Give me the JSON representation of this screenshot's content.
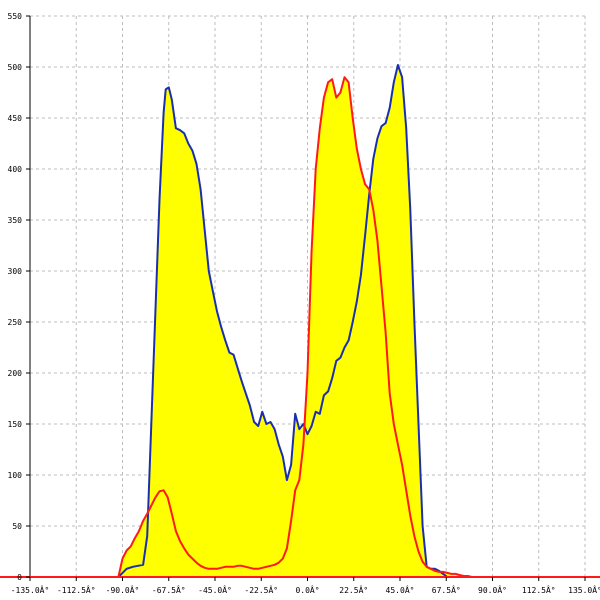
{
  "chart_data": {
    "type": "area",
    "title": "",
    "xlabel": "",
    "ylabel": "",
    "xlim": [
      -135,
      135
    ],
    "ylim": [
      0,
      550
    ],
    "grid": true,
    "x_ticks": [
      -135,
      -112.5,
      -90,
      -67.5,
      -45,
      -22.5,
      0,
      22.5,
      45,
      67.5,
      90,
      112.5,
      135
    ],
    "x_tick_labels": [
      "-135.0Â°",
      "-112.5Â°",
      "-90.0Â°",
      "-67.5Â°",
      "-45.0Â°",
      "-22.5Â°",
      "0.0Â°",
      "22.5Â°",
      "45.0Â°",
      "67.5Â°",
      "90.0Â°",
      "112.5Â°",
      "135.0Â°"
    ],
    "y_ticks": [
      0,
      50,
      100,
      150,
      200,
      250,
      300,
      350,
      400,
      450,
      500,
      550
    ],
    "y_tick_labels": [
      "0",
      "50",
      "100",
      "150",
      "200",
      "250",
      "300",
      "350",
      "400",
      "450",
      "500",
      "550"
    ],
    "fill_color": "#ffff00",
    "series": [
      {
        "color": "#1a2fb0",
        "x": [
          -135,
          -92,
          -90,
          -88,
          -85,
          -80,
          -78,
          -76,
          -74,
          -72,
          -70,
          -69,
          -67.5,
          -66,
          -64,
          -62,
          -60,
          -58,
          -56,
          -54,
          -52,
          -50,
          -48,
          -46,
          -44,
          -42,
          -40,
          -38,
          -36,
          -34,
          -32,
          -30,
          -28,
          -26,
          -24,
          -22,
          -20,
          -18,
          -16,
          -14,
          -12,
          -10,
          -8,
          -6,
          -4,
          -2,
          0,
          2,
          4,
          6,
          8,
          10,
          12,
          14,
          16,
          18,
          20,
          22,
          24,
          26,
          28,
          30,
          32,
          34,
          36,
          38,
          40,
          42,
          44,
          46,
          48,
          50,
          52,
          54,
          56,
          58,
          60,
          62,
          64,
          66,
          68,
          69,
          70,
          72,
          74,
          76,
          78,
          80,
          82,
          84,
          86,
          88,
          90,
          92,
          135
        ],
        "y": [
          0,
          0,
          4,
          8,
          10,
          12,
          40,
          150,
          260,
          370,
          455,
          478,
          480,
          468,
          440,
          438,
          435,
          425,
          418,
          405,
          380,
          340,
          300,
          280,
          260,
          245,
          232,
          220,
          218,
          205,
          192,
          180,
          168,
          152,
          148,
          162,
          150,
          152,
          145,
          130,
          118,
          95,
          110,
          160,
          145,
          150,
          140,
          148,
          162,
          160,
          178,
          182,
          195,
          212,
          215,
          225,
          232,
          250,
          270,
          296,
          335,
          375,
          410,
          430,
          442,
          445,
          460,
          485,
          502,
          490,
          440,
          360,
          250,
          150,
          50,
          10,
          8,
          8,
          6,
          3,
          0,
          0,
          0,
          0,
          0,
          0,
          0,
          0,
          0,
          0,
          0,
          0,
          0,
          0,
          0
        ]
      },
      {
        "color": "#ff1a1a",
        "x": [
          -135,
          -92,
          -90,
          -88,
          -86,
          -84,
          -82,
          -80,
          -78,
          -76,
          -74,
          -72,
          -70,
          -68,
          -66,
          -64,
          -62,
          -60,
          -58,
          -56,
          -54,
          -52,
          -50,
          -48,
          -46,
          -44,
          -42,
          -40,
          -38,
          -36,
          -34,
          -32,
          -30,
          -28,
          -26,
          -24,
          -22,
          -20,
          -18,
          -16,
          -14,
          -12,
          -10,
          -8,
          -6,
          -4,
          -2,
          0,
          2,
          4,
          6,
          8,
          10,
          12,
          14,
          16,
          18,
          20,
          22,
          24,
          26,
          28,
          30,
          32,
          34,
          36,
          38,
          40,
          42,
          44,
          46,
          48,
          50,
          52,
          54,
          56,
          58,
          60,
          62,
          64,
          66,
          68,
          70,
          72,
          74,
          76,
          78,
          80,
          82,
          84,
          86,
          88,
          90,
          92,
          135
        ],
        "y": [
          0,
          0,
          18,
          26,
          30,
          38,
          45,
          55,
          62,
          70,
          78,
          84,
          85,
          78,
          62,
          45,
          35,
          28,
          22,
          18,
          14,
          11,
          9,
          8,
          8,
          8,
          9,
          10,
          10,
          10,
          11,
          11,
          10,
          9,
          8,
          8,
          9,
          10,
          11,
          12,
          14,
          18,
          28,
          55,
          85,
          95,
          130,
          200,
          320,
          400,
          440,
          470,
          485,
          488,
          470,
          475,
          490,
          485,
          450,
          420,
          400,
          385,
          380,
          360,
          330,
          285,
          240,
          180,
          150,
          130,
          110,
          85,
          60,
          40,
          25,
          15,
          10,
          8,
          6,
          5,
          5,
          4,
          3,
          3,
          2,
          1,
          1,
          0,
          0,
          0,
          0,
          0,
          0,
          0,
          0
        ]
      }
    ]
  }
}
